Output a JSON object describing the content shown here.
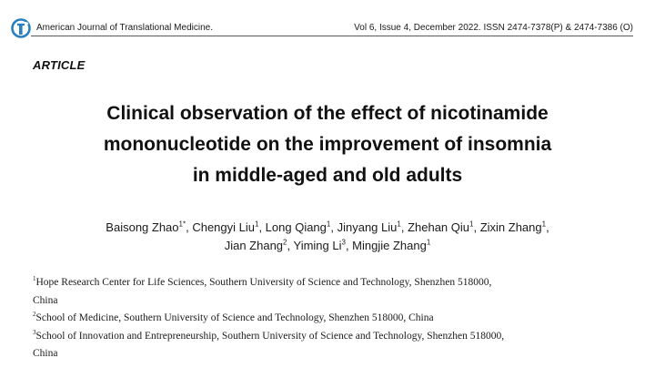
{
  "header": {
    "journal_name": "American Journal of Translational Medicine.",
    "issue_info": "Vol 6, Issue 4, December 2022. ISSN 2474-7378(P) & 2474-7386 (O)",
    "logo_color": "#2a7fc0"
  },
  "article_type": "ARTICLE",
  "title_lines": [
    "Clinical observation of the effect of nicotinamide",
    "mononucleotide on the improvement of insomnia",
    "in middle-aged and old adults"
  ],
  "authors": {
    "line1": [
      {
        "name": "Baisong Zhao",
        "sup": "1*",
        "sep": ", "
      },
      {
        "name": "Chengyi Liu",
        "sup": "1",
        "sep": ", "
      },
      {
        "name": "Long Qiang",
        "sup": "1",
        "sep": ", "
      },
      {
        "name": "Jinyang Liu",
        "sup": "1",
        "sep": ", "
      },
      {
        "name": "Zhehan Qiu",
        "sup": "1",
        "sep": ", "
      },
      {
        "name": "Zixin Zhang",
        "sup": "1",
        "sep": ","
      }
    ],
    "line2": [
      {
        "name": "Jian Zhang",
        "sup": "2",
        "sep": ", "
      },
      {
        "name": "Yiming Li",
        "sup": "3",
        "sep": ", "
      },
      {
        "name": "Mingjie Zhang",
        "sup": "1",
        "sep": ""
      }
    ]
  },
  "affiliations": [
    {
      "sup": "1",
      "text": "Hope Research Center for Life Sciences, Southern University of Science and Technology, Shenzhen 518000,"
    },
    {
      "sup": "",
      "text": "China"
    },
    {
      "sup": "2",
      "text": "School of Medicine, Southern University of Science and Technology, Shenzhen 518000, China"
    },
    {
      "sup": "3",
      "text": "School of Innovation and Entrepreneurship, Southern University of Science and Technology, Shenzhen 518000,"
    },
    {
      "sup": "",
      "text": "China"
    }
  ]
}
